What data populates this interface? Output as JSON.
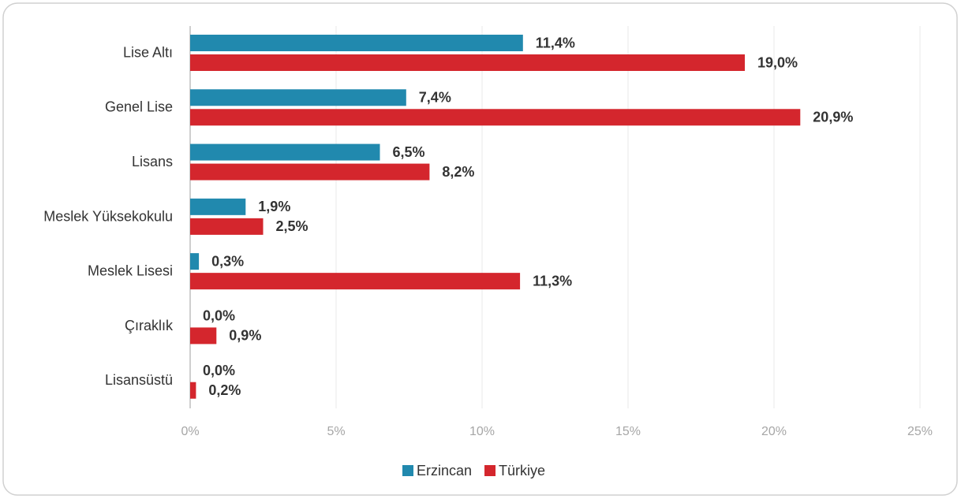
{
  "chart_data": {
    "type": "bar",
    "orientation": "horizontal",
    "categories": [
      "Lise Altı",
      "Genel Lise",
      "Lisans",
      "Meslek Yüksekokulu",
      "Meslek Lisesi",
      "Çıraklık",
      "Lisansüstü"
    ],
    "series": [
      {
        "name": "Erzincan",
        "color": "#2189ae",
        "values": [
          11.4,
          7.4,
          6.5,
          1.9,
          0.3,
          0.0,
          0.0
        ],
        "value_labels": [
          "11,4%",
          "7,4%",
          "6,5%",
          "1,9%",
          "0,3%",
          "0,0%",
          "0,0%"
        ]
      },
      {
        "name": "Türkiye",
        "color": "#d4262d",
        "values": [
          19.0,
          20.9,
          8.2,
          2.5,
          11.3,
          0.9,
          0.2
        ],
        "value_labels": [
          "19,0%",
          "20,9%",
          "8,2%",
          "2,5%",
          "11,3%",
          "0,9%",
          "0,2%"
        ]
      }
    ],
    "xlim": [
      0,
      25
    ],
    "xticks": [
      {
        "value": 0,
        "label": "0%"
      },
      {
        "value": 5,
        "label": "5%"
      },
      {
        "value": 10,
        "label": "10%"
      },
      {
        "value": 15,
        "label": "15%"
      },
      {
        "value": 20,
        "label": "20%"
      },
      {
        "value": 25,
        "label": "25%"
      }
    ],
    "grid": true,
    "legend": "bottom"
  }
}
